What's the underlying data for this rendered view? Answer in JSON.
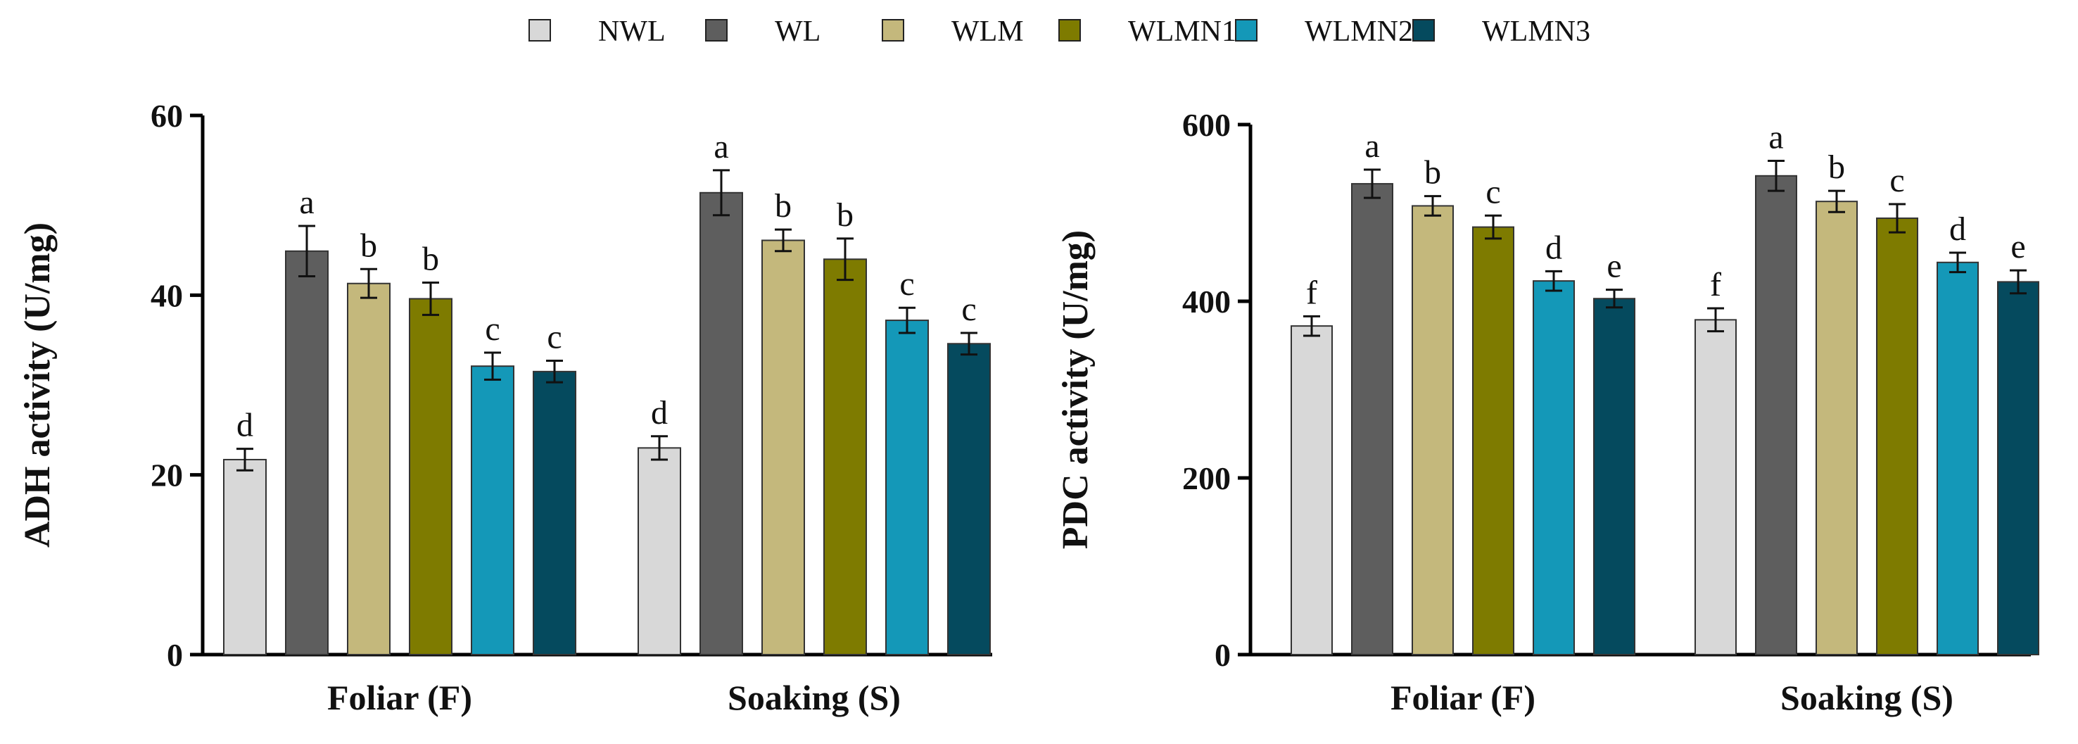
{
  "legend": {
    "items": [
      {
        "name": "NWL",
        "color": "#d8d8d8"
      },
      {
        "name": "WL",
        "color": "#5e5e5e"
      },
      {
        "name": "WLM",
        "color": "#c4b87c"
      },
      {
        "name": "WLMN1",
        "color": "#7e7b00"
      },
      {
        "name": "WLMN2",
        "color": "#1498b8"
      },
      {
        "name": "WLMN3",
        "color": "#054a5e"
      }
    ]
  },
  "chart_data": [
    {
      "type": "bar",
      "ylabel": "ADH activity (U/mg)",
      "xlabel": "",
      "ylim": [
        0,
        60
      ],
      "yticks": [
        0,
        20,
        40,
        60
      ],
      "categories": [
        "Foliar (F)",
        "Soaking (S)"
      ],
      "series": [
        {
          "name": "NWL",
          "values": [
            21.7,
            23.0
          ],
          "errors": [
            1.2,
            1.3
          ],
          "letters": [
            "d",
            "d"
          ]
        },
        {
          "name": "WL",
          "values": [
            44.9,
            51.4
          ],
          "errors": [
            2.8,
            2.5
          ],
          "letters": [
            "a",
            "a"
          ]
        },
        {
          "name": "WLM",
          "values": [
            41.3,
            46.1
          ],
          "errors": [
            1.6,
            1.2
          ],
          "letters": [
            "b",
            "b"
          ]
        },
        {
          "name": "WLMN1",
          "values": [
            39.6,
            44.0
          ],
          "errors": [
            1.8,
            2.3
          ],
          "letters": [
            "b",
            "b"
          ]
        },
        {
          "name": "WLMN2",
          "values": [
            32.1,
            37.2
          ],
          "errors": [
            1.5,
            1.4
          ],
          "letters": [
            "c",
            "c"
          ]
        },
        {
          "name": "WLMN3",
          "values": [
            31.5,
            34.6
          ],
          "errors": [
            1.2,
            1.2
          ],
          "letters": [
            "c",
            "c"
          ]
        }
      ]
    },
    {
      "type": "bar",
      "ylabel": "PDC activity (U/mg)",
      "xlabel": "",
      "ylim": [
        0,
        600
      ],
      "yticks": [
        0,
        200,
        400,
        600
      ],
      "categories": [
        "Foliar (F)",
        "Soaking (S)"
      ],
      "series": [
        {
          "name": "NWL",
          "values": [
            372,
            379
          ],
          "errors": [
            11,
            13
          ],
          "letters": [
            "f",
            "f"
          ]
        },
        {
          "name": "WL",
          "values": [
            533,
            542
          ],
          "errors": [
            16,
            17
          ],
          "letters": [
            "a",
            "a"
          ]
        },
        {
          "name": "WLM",
          "values": [
            508,
            513
          ],
          "errors": [
            11,
            12
          ],
          "letters": [
            "b",
            "b"
          ]
        },
        {
          "name": "WLMN1",
          "values": [
            484,
            494
          ],
          "errors": [
            13,
            16
          ],
          "letters": [
            "c",
            "c"
          ]
        },
        {
          "name": "WLMN2",
          "values": [
            423,
            444
          ],
          "errors": [
            11,
            11
          ],
          "letters": [
            "d",
            "d"
          ]
        },
        {
          "name": "WLMN3",
          "values": [
            403,
            422
          ],
          "errors": [
            10,
            13
          ],
          "letters": [
            "e",
            "e"
          ]
        }
      ]
    }
  ]
}
